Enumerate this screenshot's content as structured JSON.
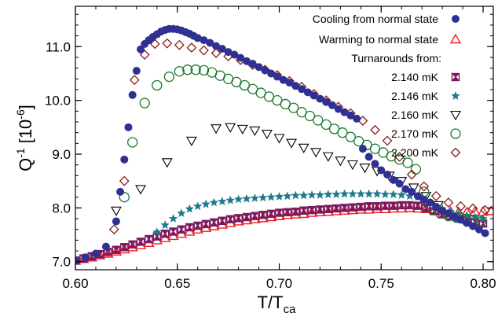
{
  "chart_data": {
    "type": "scatter",
    "xlabel": "T/T",
    "xlabel_sub": "ca",
    "ylabel": "Q",
    "ylabel_sup": "-1",
    "ylabel_unit": "[10",
    "ylabel_unit_sup": "-6",
    "ylabel_unit_close": "]",
    "xlim": [
      0.6,
      0.805
    ],
    "ylim": [
      6.85,
      11.75
    ],
    "xticks": [
      "0.60",
      "0.65",
      "0.70",
      "0.75",
      "0.80"
    ],
    "yticks": [
      "7.0",
      "8.0",
      "9.0",
      "10.0",
      "11.0"
    ],
    "xtick_values": [
      0.6,
      0.65,
      0.7,
      0.75,
      0.8
    ],
    "ytick_values": [
      7.0,
      8.0,
      9.0,
      10.0,
      11.0
    ],
    "grid": false,
    "legend_placement": "top-right",
    "legend_heading": "Turnarounds from:",
    "series": [
      {
        "name": "Cooling from normal state",
        "marker": "filled-circle",
        "color": "#2e3192",
        "x": [
          0.6,
          0.605,
          0.61,
          0.615,
          0.62,
          0.622,
          0.624,
          0.626,
          0.628,
          0.63,
          0.632,
          0.634,
          0.636,
          0.638,
          0.64,
          0.642,
          0.644,
          0.646,
          0.648,
          0.65,
          0.652,
          0.654,
          0.656,
          0.658,
          0.66,
          0.663,
          0.666,
          0.669,
          0.672,
          0.675,
          0.678,
          0.681,
          0.684,
          0.687,
          0.69,
          0.693,
          0.696,
          0.699,
          0.702,
          0.705,
          0.708,
          0.711,
          0.714,
          0.717,
          0.72,
          0.723,
          0.726,
          0.729,
          0.732,
          0.735,
          0.738,
          0.741,
          0.744,
          0.747,
          0.75,
          0.753,
          0.756,
          0.759,
          0.762,
          0.765,
          0.768,
          0.771,
          0.774,
          0.777,
          0.78,
          0.783,
          0.786,
          0.789,
          0.792,
          0.795,
          0.798,
          0.801
        ],
        "y": [
          7.02,
          7.08,
          7.15,
          7.28,
          7.75,
          8.3,
          8.9,
          9.5,
          10.1,
          10.55,
          10.95,
          11.05,
          11.12,
          11.18,
          11.23,
          11.28,
          11.31,
          11.33,
          11.33,
          11.32,
          11.3,
          11.27,
          11.24,
          11.2,
          11.16,
          11.12,
          11.07,
          11.01,
          10.96,
          10.9,
          10.85,
          10.79,
          10.73,
          10.68,
          10.62,
          10.56,
          10.5,
          10.44,
          10.38,
          10.33,
          10.27,
          10.21,
          10.15,
          10.09,
          10.03,
          9.97,
          9.91,
          9.84,
          9.78,
          9.72,
          9.66,
          9.1,
          8.95,
          8.82,
          8.7,
          8.62,
          8.52,
          8.45,
          8.35,
          8.3,
          8.22,
          8.15,
          8.1,
          8.02,
          7.95,
          7.9,
          7.83,
          7.78,
          7.72,
          7.66,
          7.6,
          7.53
        ]
      },
      {
        "name": "Warming to normal state",
        "marker": "open-triangle-up",
        "color": "#ed1c24",
        "x": [
          0.6,
          0.604,
          0.608,
          0.612,
          0.616,
          0.62,
          0.624,
          0.628,
          0.632,
          0.636,
          0.64,
          0.644,
          0.648,
          0.652,
          0.656,
          0.66,
          0.664,
          0.668,
          0.672,
          0.676,
          0.68,
          0.684,
          0.688,
          0.692,
          0.696,
          0.7,
          0.704,
          0.708,
          0.712,
          0.716,
          0.72,
          0.724,
          0.728,
          0.732,
          0.736,
          0.74,
          0.744,
          0.748,
          0.752,
          0.756,
          0.76,
          0.764,
          0.768,
          0.772,
          0.776,
          0.78,
          0.784,
          0.788,
          0.792,
          0.796,
          0.8,
          0.804
        ],
        "y": [
          7.02,
          7.05,
          7.08,
          7.12,
          7.15,
          7.19,
          7.23,
          7.27,
          7.31,
          7.35,
          7.4,
          7.44,
          7.48,
          7.52,
          7.56,
          7.6,
          7.63,
          7.66,
          7.69,
          7.72,
          7.75,
          7.77,
          7.79,
          7.81,
          7.83,
          7.85,
          7.87,
          7.88,
          7.89,
          7.91,
          7.92,
          7.93,
          7.94,
          7.95,
          7.96,
          7.97,
          7.97,
          7.98,
          7.98,
          7.99,
          7.99,
          8.0,
          7.99,
          7.98,
          7.96,
          7.94,
          7.93,
          7.92,
          7.92,
          7.93,
          7.93,
          7.94
        ]
      },
      {
        "name": "2.140 mK",
        "marker": "hourglass-square",
        "color": "#7b1a5f",
        "x": [
          0.6,
          0.604,
          0.608,
          0.612,
          0.616,
          0.62,
          0.624,
          0.628,
          0.632,
          0.636,
          0.64,
          0.644,
          0.648,
          0.652,
          0.656,
          0.66,
          0.664,
          0.668,
          0.672,
          0.676,
          0.68,
          0.684,
          0.688,
          0.692,
          0.696,
          0.7,
          0.704,
          0.708,
          0.712,
          0.716,
          0.72,
          0.724,
          0.728,
          0.732,
          0.736,
          0.74,
          0.744,
          0.748,
          0.752,
          0.756,
          0.76,
          0.764,
          0.768,
          0.772,
          0.776,
          0.78,
          0.784,
          0.788,
          0.792,
          0.796,
          0.8
        ],
        "y": [
          7.02,
          7.06,
          7.1,
          7.14,
          7.18,
          7.22,
          7.27,
          7.32,
          7.37,
          7.42,
          7.47,
          7.52,
          7.56,
          7.6,
          7.64,
          7.67,
          7.7,
          7.73,
          7.76,
          7.79,
          7.81,
          7.83,
          7.85,
          7.87,
          7.89,
          7.91,
          7.92,
          7.93,
          7.95,
          7.96,
          7.97,
          7.98,
          7.99,
          8.0,
          8.01,
          8.02,
          8.03,
          8.03,
          8.04,
          8.04,
          8.05,
          8.05,
          8.04,
          8.0,
          7.94,
          7.88,
          7.84,
          7.8,
          7.77,
          7.74,
          7.71
        ]
      },
      {
        "name": "2.146 mK",
        "marker": "star",
        "color": "#1f7a8c",
        "x": [
          0.64,
          0.644,
          0.648,
          0.652,
          0.656,
          0.66,
          0.664,
          0.668,
          0.672,
          0.676,
          0.68,
          0.684,
          0.688,
          0.692,
          0.696,
          0.7,
          0.704,
          0.708,
          0.712,
          0.716,
          0.72,
          0.724,
          0.728,
          0.732,
          0.736,
          0.74,
          0.744,
          0.748,
          0.752,
          0.756,
          0.76,
          0.764,
          0.768,
          0.772,
          0.776,
          0.78,
          0.784,
          0.788,
          0.792,
          0.796,
          0.8
        ],
        "y": [
          7.55,
          7.68,
          7.8,
          7.9,
          7.98,
          8.03,
          8.07,
          8.1,
          8.12,
          8.14,
          8.16,
          8.17,
          8.18,
          8.19,
          8.2,
          8.21,
          8.22,
          8.23,
          8.23,
          8.24,
          8.24,
          8.25,
          8.25,
          8.26,
          8.26,
          8.26,
          8.26,
          8.26,
          8.25,
          8.25,
          8.24,
          8.22,
          8.2,
          8.13,
          8.05,
          7.98,
          7.93,
          7.89,
          7.86,
          7.83,
          7.8
        ]
      },
      {
        "name": "2.160 mK",
        "marker": "open-triangle-down",
        "color": "#000000",
        "x": [
          0.62,
          0.632,
          0.645,
          0.657,
          0.669,
          0.676,
          0.682,
          0.688,
          0.694,
          0.7,
          0.706,
          0.712,
          0.718,
          0.724,
          0.73,
          0.736,
          0.742,
          0.748,
          0.754,
          0.76,
          0.766,
          0.772,
          0.778
        ],
        "y": [
          7.95,
          8.35,
          8.85,
          9.25,
          9.48,
          9.5,
          9.47,
          9.44,
          9.38,
          9.3,
          9.21,
          9.12,
          9.04,
          8.96,
          8.88,
          8.81,
          8.75,
          8.69,
          8.6,
          8.5,
          8.38,
          8.22,
          8.05
        ]
      },
      {
        "name": "2.170 mK",
        "marker": "open-circle",
        "color": "#1a7a2e",
        "x": [
          0.624,
          0.628,
          0.634,
          0.64,
          0.646,
          0.651,
          0.655,
          0.659,
          0.663,
          0.667,
          0.671,
          0.675,
          0.679,
          0.683,
          0.687,
          0.691,
          0.695,
          0.699,
          0.703,
          0.707,
          0.711,
          0.715,
          0.719,
          0.723,
          0.727,
          0.731,
          0.735,
          0.739,
          0.743,
          0.747,
          0.751,
          0.755,
          0.759,
          0.763,
          0.767,
          0.771,
          0.775,
          0.779,
          0.783,
          0.787,
          0.791,
          0.795,
          0.799
        ],
        "y": [
          8.2,
          9.22,
          9.95,
          10.28,
          10.44,
          10.54,
          10.57,
          10.57,
          10.56,
          10.52,
          10.46,
          10.4,
          10.34,
          10.28,
          10.21,
          10.14,
          10.07,
          10.0,
          9.93,
          9.86,
          9.78,
          9.71,
          9.63,
          9.55,
          9.47,
          9.4,
          9.32,
          9.24,
          9.17,
          9.1,
          9.03,
          8.96,
          8.9,
          8.84,
          8.72,
          8.3,
          8.0,
          7.9,
          7.85,
          7.82,
          7.79,
          7.77,
          7.75
        ]
      },
      {
        "name": "2.200 mK",
        "marker": "open-diamond",
        "color": "#8b1a1a",
        "x": [
          0.619,
          0.624,
          0.629,
          0.634,
          0.639,
          0.645,
          0.651,
          0.657,
          0.663,
          0.669,
          0.675,
          0.681,
          0.687,
          0.693,
          0.699,
          0.705,
          0.711,
          0.717,
          0.723,
          0.729,
          0.735,
          0.741,
          0.747,
          0.753,
          0.759,
          0.765,
          0.771,
          0.777,
          0.783,
          0.789,
          0.795,
          0.801
        ],
        "y": [
          7.6,
          8.5,
          10.38,
          10.85,
          11.05,
          11.06,
          11.03,
          10.98,
          10.93,
          10.88,
          10.82,
          10.75,
          10.66,
          10.57,
          10.47,
          10.36,
          10.25,
          10.12,
          10.0,
          9.88,
          9.76,
          9.62,
          9.45,
          9.25,
          8.95,
          8.62,
          8.4,
          8.22,
          8.1,
          8.03,
          7.99,
          7.96
        ]
      }
    ]
  }
}
